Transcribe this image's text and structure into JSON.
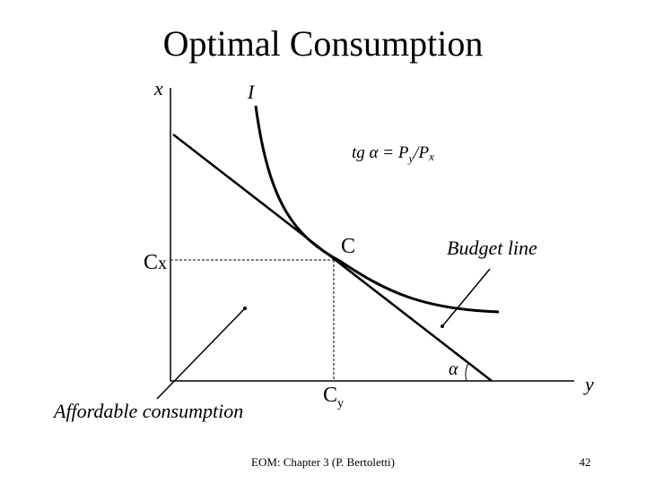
{
  "header": {
    "title": "Optimal Consumption"
  },
  "axes": {
    "vertical": "x",
    "horizontal": "y"
  },
  "curve_label": "I",
  "formula": {
    "lead": "tg α = P",
    "sub1": "y",
    "mid": "/P",
    "sub2": "x"
  },
  "point": {
    "label": "C"
  },
  "cx": {
    "main": "C",
    "sub": "x"
  },
  "cy": {
    "main": "C",
    "sub": "y"
  },
  "budget_label": "Budget line",
  "angle_label": "α",
  "affordable_label": "Affordable consumption",
  "footer": {
    "source": "EOM: Chapter 3 (P. Bertoletti)",
    "page": "42"
  }
}
